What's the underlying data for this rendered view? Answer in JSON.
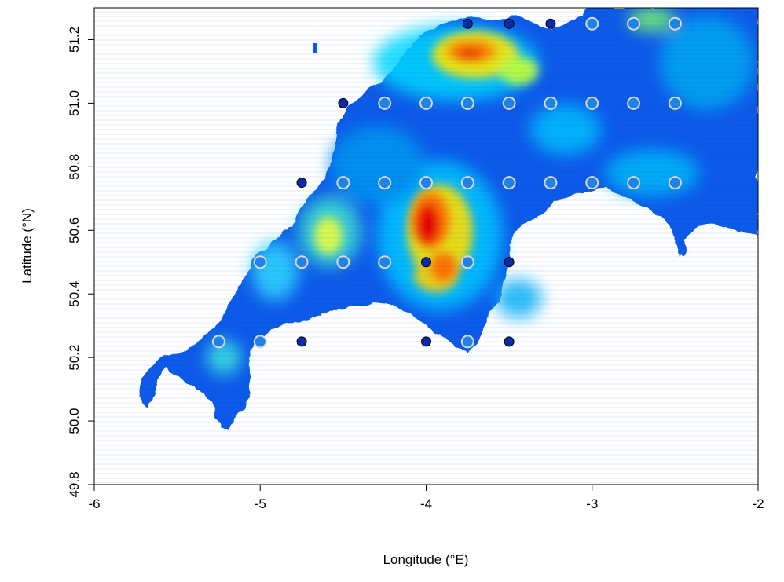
{
  "chart_data": {
    "type": "scatter",
    "title": "",
    "xlabel": "Longitude (°E)",
    "ylabel": "Latitude (°N)",
    "xlim": [
      -6,
      -2
    ],
    "ylim": [
      49.8,
      51.3
    ],
    "x_ticks": [
      -6,
      -5,
      -4,
      -3,
      -2
    ],
    "y_ticks": [
      49.8,
      50.0,
      50.2,
      50.4,
      50.6,
      50.8,
      51.0,
      51.2
    ],
    "x_tick_labels": [
      "-6",
      "-5",
      "-4",
      "-3",
      "-2"
    ],
    "y_tick_labels": [
      "49.8",
      "50.0",
      "50.2",
      "50.4",
      "50.6",
      "50.8",
      "51.0",
      "51.2"
    ],
    "background": "elevation raster of South West England (blue low → cyan → yellow → red high)",
    "colors": {
      "ring_point_fill": "#1e82e6",
      "ring_point_stroke": "#d8d8d8",
      "dark_point_fill": "#0a2aa8",
      "dark_point_stroke": "#000000",
      "elev_low": "#0050e6",
      "elev_mid": "#00d4ff",
      "elev_high": "#ffff00",
      "elev_peak": "#e60000"
    },
    "series": [
      {
        "style": "light-ring",
        "points": [
          [
            -3.0,
            51.25
          ],
          [
            -2.75,
            51.25
          ],
          [
            -2.5,
            51.25
          ],
          [
            -4.25,
            51.0
          ],
          [
            -4.0,
            51.0
          ],
          [
            -3.75,
            51.0
          ],
          [
            -3.5,
            51.0
          ],
          [
            -3.25,
            51.0
          ],
          [
            -3.0,
            51.0
          ],
          [
            -2.75,
            51.0
          ],
          [
            -2.5,
            51.0
          ],
          [
            -4.5,
            50.75
          ],
          [
            -4.25,
            50.75
          ],
          [
            -4.0,
            50.75
          ],
          [
            -3.75,
            50.75
          ],
          [
            -3.5,
            50.75
          ],
          [
            -3.25,
            50.75
          ],
          [
            -3.0,
            50.75
          ],
          [
            -2.75,
            50.75
          ],
          [
            -2.5,
            50.75
          ],
          [
            -5.0,
            50.5
          ],
          [
            -4.75,
            50.5
          ],
          [
            -4.5,
            50.5
          ],
          [
            -4.25,
            50.5
          ],
          [
            -3.75,
            50.5
          ],
          [
            -5.25,
            50.25
          ],
          [
            -5.0,
            50.25
          ],
          [
            -3.75,
            50.25
          ]
        ]
      },
      {
        "style": "dark",
        "points": [
          [
            -3.75,
            51.25
          ],
          [
            -3.5,
            51.25
          ],
          [
            -3.25,
            51.25
          ],
          [
            -4.5,
            51.0
          ],
          [
            -4.75,
            50.75
          ],
          [
            -4.0,
            50.5
          ],
          [
            -3.5,
            50.5
          ],
          [
            -4.75,
            50.25
          ],
          [
            -4.0,
            50.25
          ],
          [
            -3.5,
            50.25
          ]
        ]
      }
    ]
  }
}
